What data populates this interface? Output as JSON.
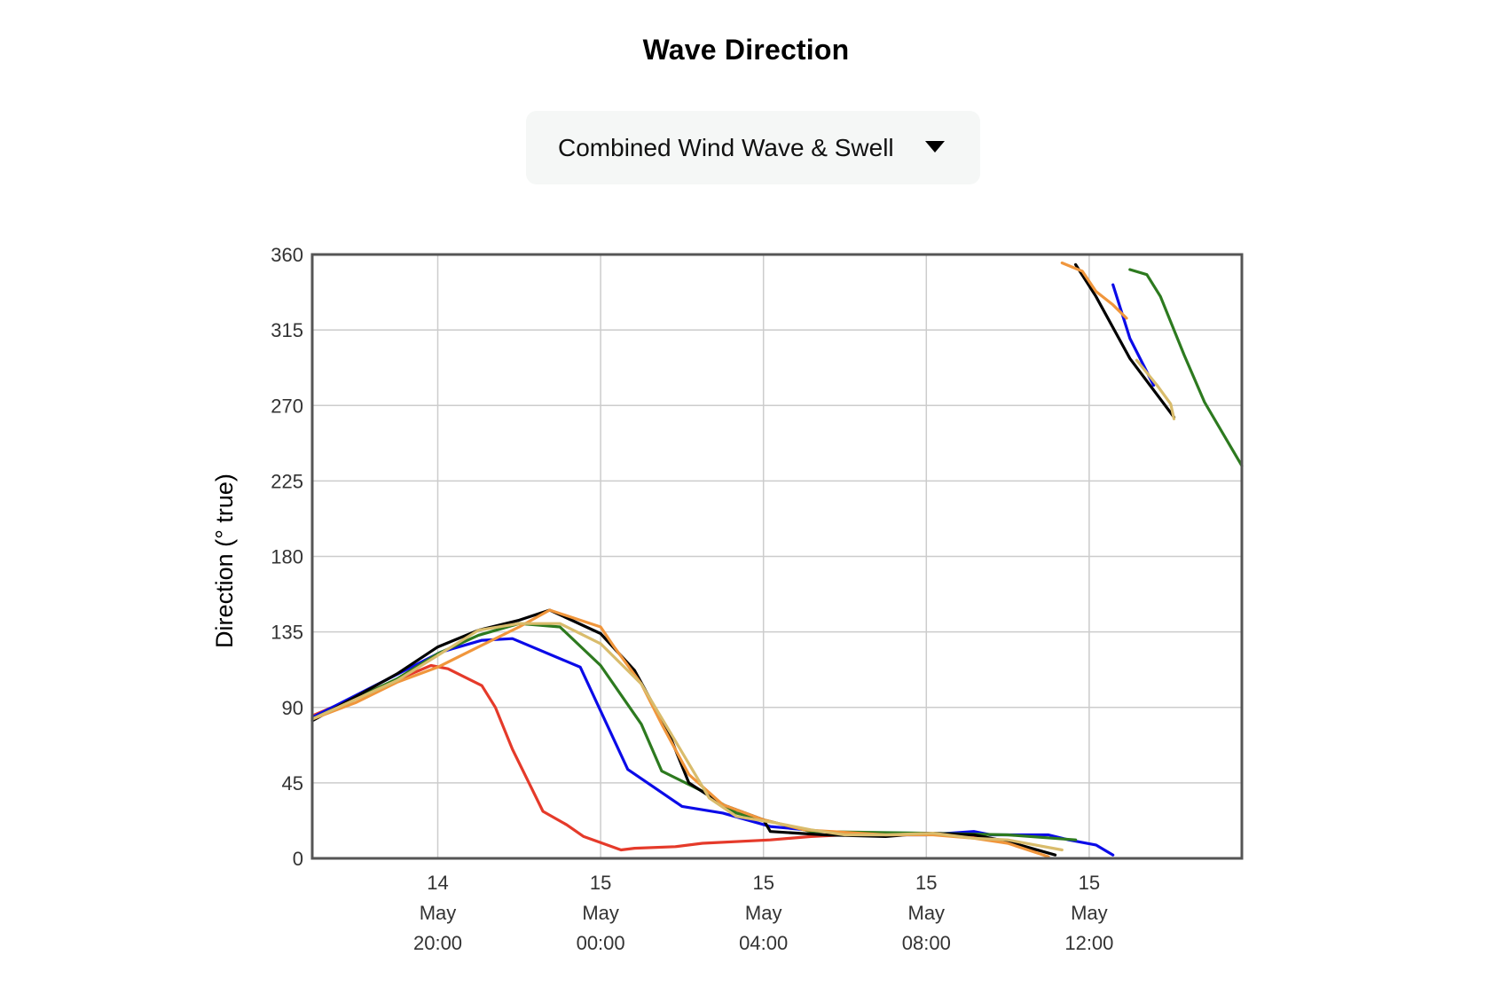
{
  "page": {
    "title": "Wave Direction"
  },
  "selector": {
    "selected": "Combined Wind Wave & Swell",
    "icon": "caret-down-icon"
  },
  "chart_data": {
    "type": "line",
    "title": "Wave Direction",
    "xlabel": "",
    "ylabel": "Direction (° true)",
    "x_unit": "hours",
    "xlim": [
      "14 May 16:55",
      "15 May 15:45"
    ],
    "ylim": [
      0,
      360
    ],
    "yticks": [
      0,
      45,
      90,
      135,
      180,
      225,
      270,
      315,
      360
    ],
    "xticks": [
      {
        "x": "14 May 20:00",
        "label": [
          "14",
          "May",
          "20:00"
        ]
      },
      {
        "x": "15 May 00:00",
        "label": [
          "15",
          "May",
          "00:00"
        ]
      },
      {
        "x": "15 May 04:00",
        "label": [
          "15",
          "May",
          "04:00"
        ]
      },
      {
        "x": "15 May 08:00",
        "label": [
          "15",
          "May",
          "08:00"
        ]
      },
      {
        "x": "15 May 12:00",
        "label": [
          "15",
          "May",
          "12:00"
        ]
      }
    ],
    "grid": true,
    "legend": "none",
    "series": [
      {
        "color": "#e53a2a",
        "segments": [
          [
            [
              "14 May 16:55",
              85
            ],
            [
              "14 May 19:50",
              115
            ],
            [
              "14 May 20:15",
              113
            ],
            [
              "14 May 21:05",
              103
            ],
            [
              "14 May 21:25",
              90
            ],
            [
              "14 May 21:50",
              65
            ],
            [
              "14 May 22:35",
              28
            ],
            [
              "14 May 23:10",
              20
            ],
            [
              "14 May 23:35",
              13
            ],
            [
              "15 May 00:30",
              5
            ],
            [
              "15 May 00:50",
              6
            ],
            [
              "15 May 01:50",
              7
            ],
            [
              "15 May 02:30",
              9
            ],
            [
              "15 May 04:10",
              11
            ],
            [
              "15 May 05:10",
              13
            ],
            [
              "15 May 06:00",
              14
            ],
            [
              "15 May 07:00",
              15
            ],
            [
              "15 May 08:10",
              15
            ],
            [
              "15 May 09:00",
              14
            ],
            [
              "15 May 10:00",
              10
            ],
            [
              "15 May 10:40",
              4
            ]
          ]
        ]
      },
      {
        "color": "#0b0be8",
        "segments": [
          [
            [
              "14 May 16:55",
              84
            ],
            [
              "14 May 20:05",
              123
            ],
            [
              "14 May 21:05",
              130
            ],
            [
              "14 May 21:50",
              131
            ],
            [
              "14 May 23:30",
              114
            ],
            [
              "15 May 00:40",
              53
            ],
            [
              "15 May 02:00",
              31
            ],
            [
              "15 May 03:00",
              27
            ],
            [
              "15 May 04:10",
              19
            ],
            [
              "15 May 05:30",
              16
            ],
            [
              "15 May 06:40",
              14
            ],
            [
              "15 May 08:00",
              14
            ],
            [
              "15 May 09:10",
              16
            ],
            [
              "15 May 09:35",
              14
            ],
            [
              "15 May 11:00",
              14
            ],
            [
              "15 May 11:30",
              11
            ],
            [
              "15 May 12:10",
              8
            ],
            [
              "15 May 12:35",
              2
            ]
          ],
          [
            [
              "15 May 12:35",
              342
            ],
            [
              "15 May 13:00",
              310
            ],
            [
              "15 May 13:35",
              282
            ]
          ]
        ]
      },
      {
        "color": "#2d7a1f",
        "segments": [
          [
            [
              "14 May 16:55",
              83
            ],
            [
              "14 May 19:00",
              107
            ],
            [
              "14 May 20:00",
              122
            ],
            [
              "14 May 21:00",
              133
            ],
            [
              "14 May 22:00",
              140
            ],
            [
              "14 May 23:00",
              138
            ],
            [
              "15 May 00:00",
              115
            ],
            [
              "15 May 01:00",
              80
            ],
            [
              "15 May 01:30",
              52
            ],
            [
              "15 May 02:30",
              40
            ],
            [
              "15 May 03:20",
              27
            ],
            [
              "15 May 04:20",
              21
            ],
            [
              "15 May 05:10",
              16
            ],
            [
              "15 May 08:00",
              15
            ],
            [
              "15 May 10:00",
              14
            ],
            [
              "15 May 11:40",
              11
            ]
          ],
          [
            [
              "15 May 13:00",
              351
            ],
            [
              "15 May 13:25",
              348
            ],
            [
              "15 May 13:45",
              335
            ],
            [
              "15 May 14:20",
              300
            ],
            [
              "15 May 14:50",
              272
            ],
            [
              "15 May 15:45",
              234
            ]
          ]
        ]
      },
      {
        "color": "#000000",
        "segments": [
          [
            [
              "14 May 16:55",
              82
            ],
            [
              "14 May 19:00",
              110
            ],
            [
              "14 May 20:00",
              126
            ],
            [
              "14 May 21:00",
              136
            ],
            [
              "14 May 22:00",
              142
            ],
            [
              "14 May 22:45",
              148
            ],
            [
              "15 May 00:00",
              134
            ],
            [
              "15 May 00:50",
              112
            ],
            [
              "15 May 01:40",
              75
            ],
            [
              "15 May 02:10",
              45
            ],
            [
              "15 May 03:00",
              32
            ],
            [
              "15 May 04:00",
              23
            ],
            [
              "15 May 04:10",
              16
            ],
            [
              "15 May 05:30",
              14
            ],
            [
              "15 May 07:00",
              13
            ],
            [
              "15 May 08:00",
              15
            ],
            [
              "15 May 09:10",
              14
            ],
            [
              "15 May 10:00",
              10
            ],
            [
              "15 May 11:10",
              2
            ]
          ],
          [
            [
              "15 May 11:40",
              354
            ],
            [
              "15 May 12:10",
              335
            ],
            [
              "15 May 13:00",
              298
            ],
            [
              "15 May 14:05",
              263
            ]
          ]
        ]
      },
      {
        "color": "#f0963c",
        "segments": [
          [
            [
              "14 May 16:55",
              83
            ],
            [
              "14 May 18:00",
              93
            ],
            [
              "14 May 19:00",
              105
            ],
            [
              "14 May 20:00",
              114
            ],
            [
              "14 May 21:00",
              126
            ],
            [
              "14 May 22:00",
              138
            ],
            [
              "14 May 22:45",
              148
            ],
            [
              "15 May 00:00",
              138
            ],
            [
              "15 May 00:20",
              126
            ],
            [
              "15 May 01:00",
              104
            ],
            [
              "15 May 01:30",
              80
            ],
            [
              "15 May 02:10",
              50
            ],
            [
              "15 May 03:00",
              32
            ],
            [
              "15 May 04:00",
              23
            ],
            [
              "15 May 05:00",
              17
            ],
            [
              "15 May 07:00",
              14
            ],
            [
              "15 May 08:10",
              14
            ],
            [
              "15 May 09:10",
              12
            ],
            [
              "15 May 10:00",
              9
            ],
            [
              "15 May 11:00",
              1
            ]
          ],
          [
            [
              "15 May 11:20",
              355
            ],
            [
              "15 May 11:50",
              350
            ],
            [
              "15 May 12:10",
              338
            ],
            [
              "15 May 12:35",
              330
            ],
            [
              "15 May 12:55",
              322
            ]
          ]
        ]
      },
      {
        "color": "#d9bc6c",
        "segments": [
          [
            [
              "14 May 16:55",
              83
            ],
            [
              "14 May 19:00",
              106
            ],
            [
              "14 May 20:00",
              121
            ],
            [
              "14 May 21:00",
              136
            ],
            [
              "14 May 22:00",
              140
            ],
            [
              "14 May 23:00",
              140
            ],
            [
              "15 May 00:00",
              128
            ],
            [
              "15 May 01:00",
              104
            ],
            [
              "15 May 01:50",
              70
            ],
            [
              "15 May 02:40",
              36
            ],
            [
              "15 May 03:20",
              25
            ],
            [
              "15 May 04:20",
              21
            ],
            [
              "15 May 05:10",
              17
            ],
            [
              "15 May 06:00",
              14
            ],
            [
              "15 May 07:00",
              14
            ],
            [
              "15 May 08:10",
              15
            ],
            [
              "15 May 09:10",
              12
            ],
            [
              "15 May 10:00",
              11
            ],
            [
              "15 May 11:20",
              5
            ]
          ],
          [
            [
              "15 May 13:10",
              297
            ],
            [
              "15 May 13:40",
              282
            ],
            [
              "15 May 14:00",
              271
            ],
            [
              "15 May 14:05",
              262
            ]
          ]
        ]
      }
    ]
  }
}
